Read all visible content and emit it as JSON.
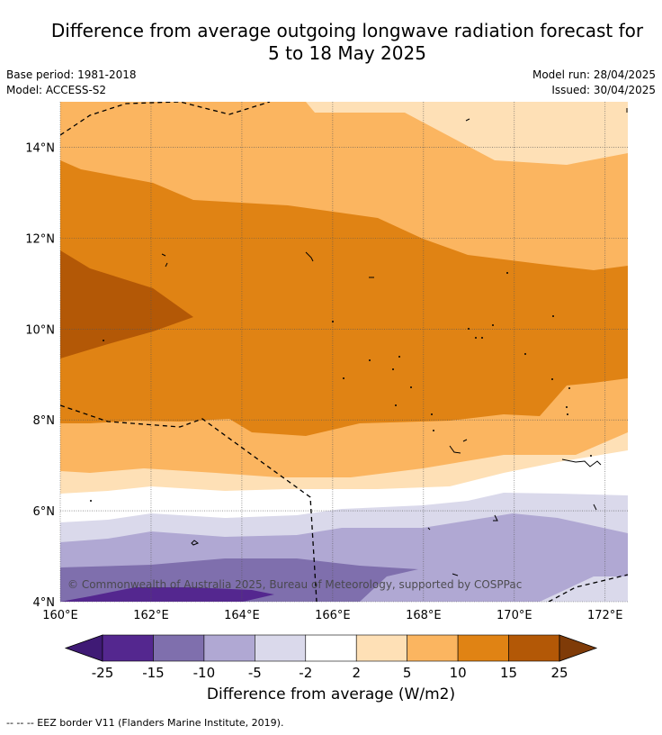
{
  "title": {
    "line1": "Difference from average outgoing longwave radiation forecast for",
    "line2": "5 to 18 May 2025"
  },
  "meta": {
    "base_period": "Base period: 1981-2018",
    "model": "Model: ACCESS-S2",
    "model_run": "Model run: 28/04/2025",
    "issued": "Issued: 30/04/2025"
  },
  "map": {
    "copyright": "© Commonwealth of Australia 2025, Bureau of Meteorology, supported by COSPPac",
    "lat_labels": [
      "4°N",
      "6°N",
      "8°N",
      "10°N",
      "12°N",
      "14°N"
    ],
    "lon_labels": [
      "160°E",
      "162°E",
      "164°E",
      "166°E",
      "168°E",
      "170°E",
      "172°E"
    ],
    "lat_range": [
      4,
      15
    ],
    "lon_range": [
      160,
      172.5
    ],
    "grid": true
  },
  "colorbar": {
    "label": "Difference from average (W/m2)",
    "ticks": [
      "-25",
      "-15",
      "-10",
      "-5",
      "-2",
      "2",
      "5",
      "10",
      "15",
      "25"
    ],
    "colors": [
      "#3f1a75",
      "#54278f",
      "#7f6fad",
      "#b0a8d3",
      "#dad9eb",
      "#ffffff",
      "#fee0b6",
      "#fbb560",
      "#e08314",
      "#b35806",
      "#7f3b08"
    ]
  },
  "legend_line": "--  --  -- EEZ border V11 (Flanders Marine Institute, 2019)."
}
